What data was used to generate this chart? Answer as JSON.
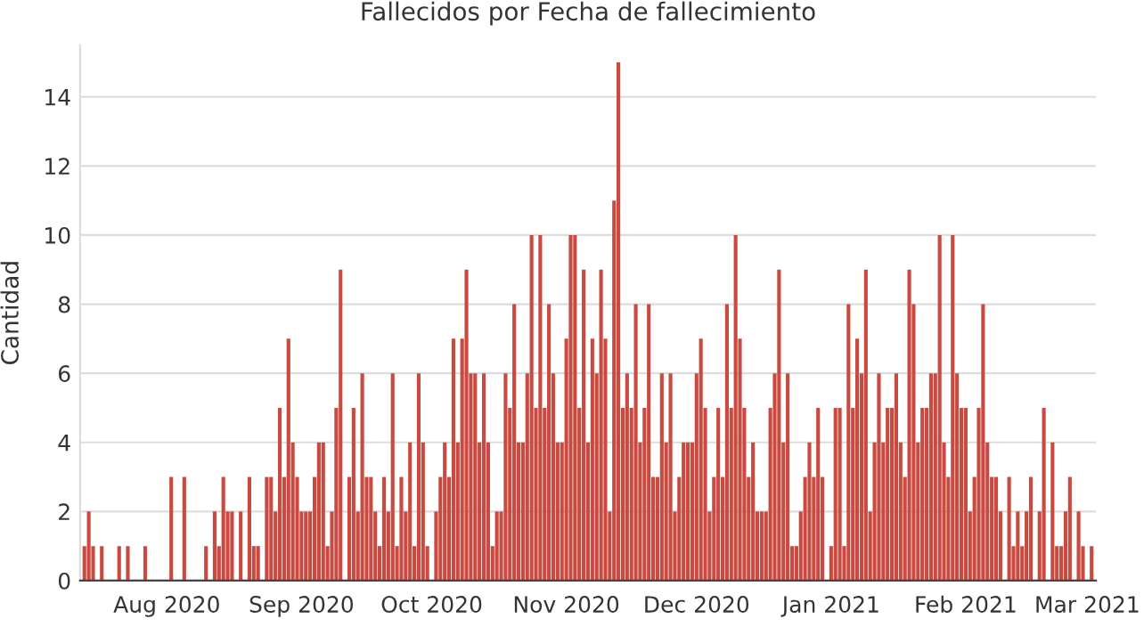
{
  "chart_data": {
    "type": "bar",
    "title": "Fallecidos por Fecha de fallecimiento",
    "ylabel": "Cantidad",
    "x": [
      "2020-07-13",
      "2020-07-14",
      "2020-07-15",
      "2020-07-16",
      "2020-07-17",
      "2020-07-18",
      "2020-07-19",
      "2020-07-20",
      "2020-07-21",
      "2020-07-22",
      "2020-07-23",
      "2020-07-24",
      "2020-07-25",
      "2020-07-26",
      "2020-07-27",
      "2020-07-28",
      "2020-07-29",
      "2020-07-30",
      "2020-07-31",
      "2020-08-01",
      "2020-08-02",
      "2020-08-03",
      "2020-08-04",
      "2020-08-05",
      "2020-08-06",
      "2020-08-07",
      "2020-08-08",
      "2020-08-09",
      "2020-08-10",
      "2020-08-11",
      "2020-08-12",
      "2020-08-13",
      "2020-08-14",
      "2020-08-15",
      "2020-08-16",
      "2020-08-17",
      "2020-08-18",
      "2020-08-19",
      "2020-08-20",
      "2020-08-21",
      "2020-08-22",
      "2020-08-23",
      "2020-08-24",
      "2020-08-25",
      "2020-08-26",
      "2020-08-27",
      "2020-08-28",
      "2020-08-29",
      "2020-08-30",
      "2020-08-31",
      "2020-09-01",
      "2020-09-02",
      "2020-09-03",
      "2020-09-04",
      "2020-09-05",
      "2020-09-06",
      "2020-09-07",
      "2020-09-08",
      "2020-09-09",
      "2020-09-10",
      "2020-09-11",
      "2020-09-12",
      "2020-09-13",
      "2020-09-14",
      "2020-09-15",
      "2020-09-16",
      "2020-09-17",
      "2020-09-18",
      "2020-09-19",
      "2020-09-20",
      "2020-09-21",
      "2020-09-22",
      "2020-09-23",
      "2020-09-24",
      "2020-09-25",
      "2020-09-26",
      "2020-09-27",
      "2020-09-28",
      "2020-09-29",
      "2020-09-30",
      "2020-10-01",
      "2020-10-02",
      "2020-10-03",
      "2020-10-04",
      "2020-10-05",
      "2020-10-06",
      "2020-10-07",
      "2020-10-08",
      "2020-10-09",
      "2020-10-10",
      "2020-10-11",
      "2020-10-12",
      "2020-10-13",
      "2020-10-14",
      "2020-10-15",
      "2020-10-16",
      "2020-10-17",
      "2020-10-18",
      "2020-10-19",
      "2020-10-20",
      "2020-10-21",
      "2020-10-22",
      "2020-10-23",
      "2020-10-24",
      "2020-10-25",
      "2020-10-26",
      "2020-10-27",
      "2020-10-28",
      "2020-10-29",
      "2020-10-30",
      "2020-10-31",
      "2020-11-01",
      "2020-11-02",
      "2020-11-03",
      "2020-11-04",
      "2020-11-05",
      "2020-11-06",
      "2020-11-07",
      "2020-11-08",
      "2020-11-09",
      "2020-11-10",
      "2020-11-11",
      "2020-11-12",
      "2020-11-13",
      "2020-11-14",
      "2020-11-15",
      "2020-11-16",
      "2020-11-17",
      "2020-11-18",
      "2020-11-19",
      "2020-11-20",
      "2020-11-21",
      "2020-11-22",
      "2020-11-23",
      "2020-11-24",
      "2020-11-25",
      "2020-11-26",
      "2020-11-27",
      "2020-11-28",
      "2020-11-29",
      "2020-11-30",
      "2020-12-01",
      "2020-12-02",
      "2020-12-03",
      "2020-12-04",
      "2020-12-05",
      "2020-12-06",
      "2020-12-07",
      "2020-12-08",
      "2020-12-09",
      "2020-12-10",
      "2020-12-11",
      "2020-12-12",
      "2020-12-13",
      "2020-12-14",
      "2020-12-15",
      "2020-12-16",
      "2020-12-17",
      "2020-12-18",
      "2020-12-19",
      "2020-12-20",
      "2020-12-21",
      "2020-12-22",
      "2020-12-23",
      "2020-12-24",
      "2020-12-25",
      "2020-12-26",
      "2020-12-27",
      "2020-12-28",
      "2020-12-29",
      "2020-12-30",
      "2020-12-31",
      "2021-01-01",
      "2021-01-02",
      "2021-01-03",
      "2021-01-04",
      "2021-01-05",
      "2021-01-06",
      "2021-01-07",
      "2021-01-08",
      "2021-01-09",
      "2021-01-10",
      "2021-01-11",
      "2021-01-12",
      "2021-01-13",
      "2021-01-14",
      "2021-01-15",
      "2021-01-16",
      "2021-01-17",
      "2021-01-18",
      "2021-01-19",
      "2021-01-20",
      "2021-01-21",
      "2021-01-22",
      "2021-01-23",
      "2021-01-24",
      "2021-01-25",
      "2021-01-26",
      "2021-01-27",
      "2021-01-28",
      "2021-01-29",
      "2021-01-30",
      "2021-01-31",
      "2021-02-01",
      "2021-02-02",
      "2021-02-03",
      "2021-02-04",
      "2021-02-05",
      "2021-02-06",
      "2021-02-07",
      "2021-02-08",
      "2021-02-09",
      "2021-02-10",
      "2021-02-11",
      "2021-02-12",
      "2021-02-13",
      "2021-02-14",
      "2021-02-15",
      "2021-02-16",
      "2021-02-17",
      "2021-02-18",
      "2021-02-19",
      "2021-02-20",
      "2021-02-21",
      "2021-02-22",
      "2021-02-23",
      "2021-02-24",
      "2021-02-25",
      "2021-02-26",
      "2021-02-27",
      "2021-02-28",
      "2021-03-01",
      "2021-03-02"
    ],
    "values": [
      1,
      2,
      1,
      0,
      1,
      0,
      0,
      0,
      1,
      0,
      1,
      0,
      0,
      0,
      1,
      0,
      0,
      0,
      0,
      0,
      3,
      0,
      0,
      3,
      0,
      0,
      0,
      0,
      1,
      0,
      2,
      1,
      3,
      2,
      2,
      0,
      2,
      0,
      3,
      1,
      1,
      0,
      3,
      3,
      2,
      5,
      3,
      7,
      4,
      3,
      2,
      2,
      2,
      3,
      4,
      4,
      1,
      2,
      5,
      9,
      0,
      3,
      5,
      2,
      6,
      3,
      3,
      2,
      1,
      3,
      2,
      6,
      1,
      3,
      2,
      4,
      1,
      6,
      4,
      1,
      0,
      2,
      3,
      4,
      3,
      7,
      4,
      7,
      9,
      6,
      6,
      4,
      6,
      4,
      1,
      2,
      2,
      6,
      5,
      8,
      4,
      4,
      6,
      10,
      5,
      10,
      5,
      8,
      6,
      4,
      4,
      7,
      10,
      10,
      5,
      9,
      4,
      7,
      6,
      9,
      7,
      2,
      11,
      15,
      5,
      6,
      5,
      8,
      4,
      5,
      8,
      3,
      3,
      6,
      4,
      6,
      2,
      3,
      4,
      4,
      4,
      6,
      7,
      5,
      2,
      3,
      5,
      3,
      8,
      5,
      10,
      7,
      5,
      3,
      4,
      2,
      2,
      2,
      5,
      6,
      9,
      4,
      6,
      1,
      1,
      2,
      3,
      4,
      3,
      5,
      3,
      0,
      1,
      5,
      5,
      1,
      8,
      5,
      7,
      6,
      9,
      2,
      4,
      6,
      4,
      5,
      5,
      6,
      4,
      3,
      9,
      8,
      4,
      5,
      5,
      6,
      6,
      10,
      4,
      3,
      10,
      6,
      5,
      5,
      2,
      3,
      5,
      8,
      4,
      3,
      3,
      2,
      0,
      3,
      1,
      2,
      1,
      2,
      3,
      0,
      2,
      5,
      0,
      4,
      1,
      1,
      2,
      3,
      0,
      2,
      1,
      0,
      1
    ],
    "color": "#c94a40",
    "xlim": [
      "2020-07-12",
      "2021-03-03"
    ],
    "xticks": [
      {
        "value": "2020-08-01",
        "label": "Aug 2020"
      },
      {
        "value": "2020-09-01",
        "label": "Sep 2020"
      },
      {
        "value": "2020-10-01",
        "label": "Oct 2020"
      },
      {
        "value": "2020-11-01",
        "label": "Nov 2020"
      },
      {
        "value": "2020-12-01",
        "label": "Dec 2020"
      },
      {
        "value": "2021-01-01",
        "label": "Jan 2021"
      },
      {
        "value": "2021-02-01",
        "label": "Feb 2021"
      },
      {
        "value": "2021-03-01",
        "label": "Mar 2021"
      }
    ],
    "ylim": [
      0,
      15.5
    ],
    "yticks": [
      0,
      2,
      4,
      6,
      8,
      10,
      12,
      14
    ],
    "grid": "y"
  }
}
